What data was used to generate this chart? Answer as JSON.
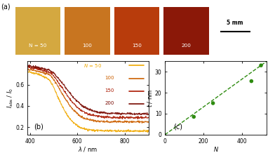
{
  "photo_colors": [
    "#D4A840",
    "#C87520",
    "#B83C0C",
    "#8B1808"
  ],
  "photo_labels": [
    "N = 50",
    "100",
    "150",
    "200"
  ],
  "photo_label_color": "white",
  "scale_bar_label": "5 mm",
  "panel_a_label": "(a)",
  "panel_b_label": "(b)",
  "panel_c_label": "(c)",
  "absorption_colors": [
    "#F0A800",
    "#CC6000",
    "#AA1800",
    "#780800"
  ],
  "legend_label_first": "N = 50",
  "legend_labels_rest": [
    "100",
    "150",
    "200"
  ],
  "xlabel_b": "λ / nm",
  "ylabel_b": "I_abs / I_0",
  "xlim_b": [
    390,
    900
  ],
  "ylim_b": [
    0.13,
    0.82
  ],
  "yticks_b": [
    0.2,
    0.4,
    0.6
  ],
  "xticks_b": [
    400,
    600,
    800
  ],
  "ellipsometry_N": [
    150,
    250,
    450,
    500
  ],
  "ellipsometry_t": [
    8.5,
    15,
    25.5,
    33
  ],
  "fit_N_start": 0,
  "fit_N_end": 530,
  "slope": 0.066,
  "xlabel_c": "N",
  "ylabel_c": "t / nm",
  "xlim_c": [
    0,
    530
  ],
  "ylim_c": [
    0,
    35
  ],
  "yticks_c": [
    0,
    10,
    20,
    30
  ],
  "xticks_c": [
    0,
    200,
    400
  ],
  "dot_color": "#2E8B10",
  "line_color": "#2E8B10",
  "background_color": "#ffffff"
}
